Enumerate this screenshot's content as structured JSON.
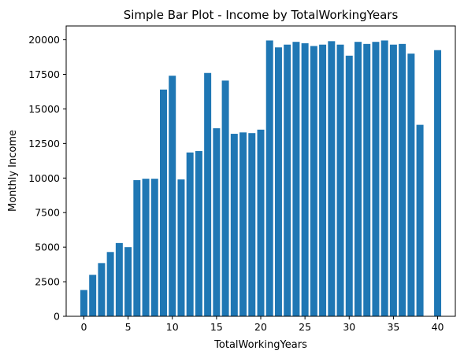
{
  "chart_data": {
    "type": "bar",
    "title": "Simple Bar Plot - Income by TotalWorkingYears",
    "xlabel": "TotalWorkingYears",
    "ylabel": "Monthly Income",
    "bar_color": "#1f77b4",
    "xlim": [
      -2,
      42
    ],
    "ylim": [
      0,
      21000
    ],
    "xticks": [
      0,
      5,
      10,
      15,
      20,
      25,
      30,
      35,
      40
    ],
    "yticks": [
      0,
      2500,
      5000,
      7500,
      10000,
      12500,
      15000,
      17500,
      20000
    ],
    "x": [
      0,
      1,
      2,
      3,
      4,
      5,
      6,
      7,
      8,
      9,
      10,
      11,
      12,
      13,
      14,
      15,
      16,
      17,
      18,
      19,
      20,
      21,
      22,
      23,
      24,
      25,
      26,
      27,
      28,
      29,
      30,
      31,
      32,
      33,
      34,
      35,
      36,
      37,
      38,
      40
    ],
    "values": [
      1900,
      3000,
      3850,
      4650,
      5300,
      5000,
      9850,
      9950,
      9950,
      16400,
      17400,
      9900,
      11850,
      11950,
      17600,
      13600,
      17050,
      13200,
      13300,
      13250,
      13500,
      19950,
      19450,
      19650,
      19850,
      19750,
      19550,
      19650,
      19900,
      19650,
      18850,
      19850,
      19700,
      19850,
      19950,
      19650,
      19700,
      19000,
      13850,
      19250
    ],
    "grid": false,
    "legend": false
  }
}
